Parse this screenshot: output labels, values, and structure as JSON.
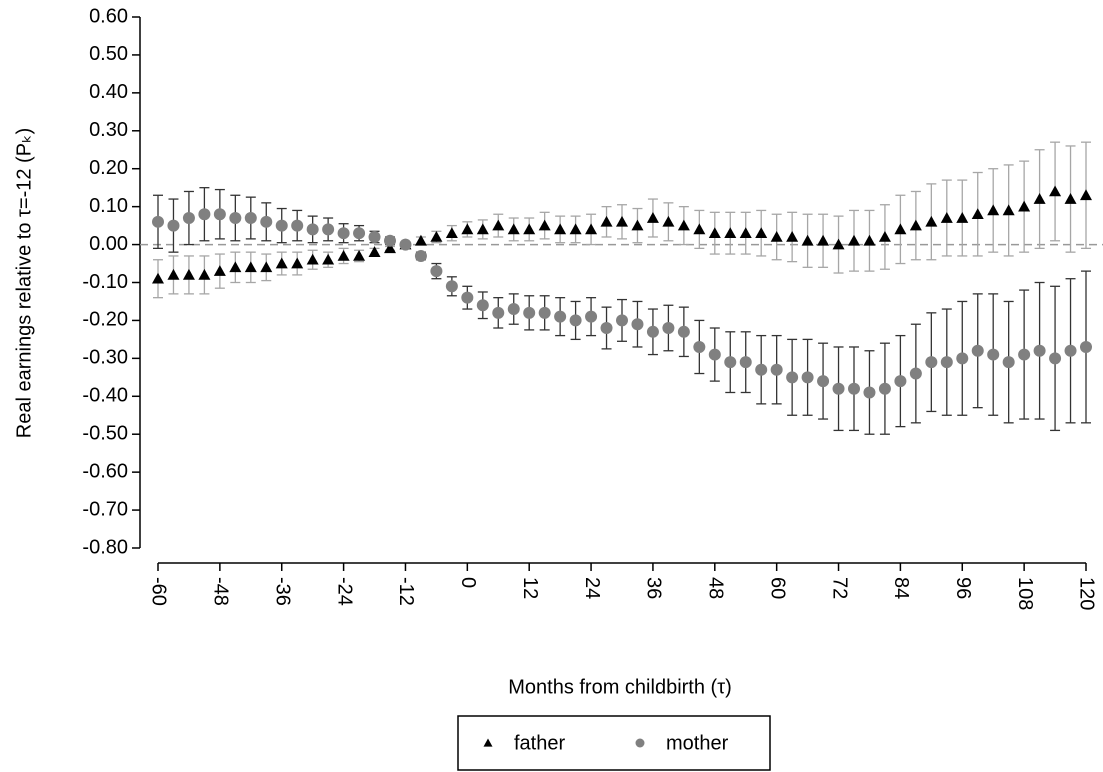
{
  "chart_data": {
    "type": "line",
    "y_label": "Real earnings relative to τ=-12 (Pₖ)",
    "x_label": "Months from childbirth (τ)",
    "x": [
      -60,
      -57,
      -54,
      -51,
      -48,
      -45,
      -42,
      -39,
      -36,
      -33,
      -30,
      -27,
      -24,
      -21,
      -18,
      -15,
      -12,
      -9,
      -6,
      -3,
      0,
      3,
      6,
      9,
      12,
      15,
      18,
      21,
      24,
      27,
      30,
      33,
      36,
      39,
      42,
      45,
      48,
      51,
      54,
      57,
      60,
      63,
      66,
      69,
      72,
      75,
      78,
      81,
      84,
      87,
      90,
      93,
      96,
      99,
      102,
      105,
      108,
      111,
      114,
      117,
      120
    ],
    "xlim": [
      -60,
      120
    ],
    "xticks": [
      -60,
      -48,
      -36,
      -24,
      -12,
      0,
      12,
      24,
      36,
      48,
      60,
      72,
      84,
      96,
      108,
      120
    ],
    "ylim": [
      -0.8,
      0.6
    ],
    "yticks": [
      {
        "value": 0.6,
        "label": "0.60"
      },
      {
        "value": 0.5,
        "label": "0.50"
      },
      {
        "value": 0.4,
        "label": "0.40"
      },
      {
        "value": 0.3,
        "label": "0.30"
      },
      {
        "value": 0.2,
        "label": "0.20"
      },
      {
        "value": 0.1,
        "label": "0.10"
      },
      {
        "value": 0,
        "label": "0.00"
      },
      {
        "value": -0.1,
        "label": "-0.10"
      },
      {
        "value": -0.2,
        "label": "-0.20"
      },
      {
        "value": -0.3,
        "label": "-0.30"
      },
      {
        "value": -0.4,
        "label": "-0.40"
      },
      {
        "value": -0.5,
        "label": "-0.50"
      },
      {
        "value": -0.6,
        "label": "-0.60"
      },
      {
        "value": -0.7,
        "label": "-0.70"
      },
      {
        "value": -0.8,
        "label": "-0.80"
      }
    ],
    "hline": 0,
    "legend": "bottom",
    "series": [
      {
        "name": "father",
        "color": "#000000",
        "marker": "triangle",
        "error_color": "#a6a6a6",
        "values": [
          -0.09,
          -0.08,
          -0.08,
          -0.08,
          -0.07,
          -0.06,
          -0.06,
          -0.06,
          -0.05,
          -0.05,
          -0.04,
          -0.04,
          -0.03,
          -0.03,
          -0.02,
          -0.01,
          0.0,
          0.01,
          0.02,
          0.03,
          0.04,
          0.04,
          0.05,
          0.04,
          0.04,
          0.05,
          0.04,
          0.04,
          0.04,
          0.06,
          0.06,
          0.05,
          0.07,
          0.06,
          0.05,
          0.04,
          0.03,
          0.03,
          0.03,
          0.03,
          0.02,
          0.02,
          0.01,
          0.01,
          0.0,
          0.01,
          0.01,
          0.02,
          0.04,
          0.05,
          0.06,
          0.07,
          0.07,
          0.08,
          0.09,
          0.09,
          0.1,
          0.12,
          0.14,
          0.12,
          0.13
        ],
        "errors": [
          0.05,
          0.05,
          0.05,
          0.05,
          0.045,
          0.04,
          0.04,
          0.035,
          0.03,
          0.03,
          0.025,
          0.02,
          0.02,
          0.015,
          0.01,
          0.005,
          0,
          0.01,
          0.015,
          0.02,
          0.02,
          0.025,
          0.03,
          0.03,
          0.03,
          0.035,
          0.035,
          0.035,
          0.04,
          0.04,
          0.045,
          0.045,
          0.05,
          0.05,
          0.05,
          0.05,
          0.055,
          0.055,
          0.055,
          0.06,
          0.06,
          0.065,
          0.07,
          0.07,
          0.075,
          0.08,
          0.08,
          0.085,
          0.09,
          0.09,
          0.1,
          0.1,
          0.1,
          0.11,
          0.11,
          0.12,
          0.12,
          0.13,
          0.13,
          0.14,
          0.14
        ]
      },
      {
        "name": "mother",
        "color": "#808080",
        "marker": "circle",
        "error_color": "#333333",
        "values": [
          0.06,
          0.05,
          0.07,
          0.08,
          0.08,
          0.07,
          0.07,
          0.06,
          0.05,
          0.05,
          0.04,
          0.04,
          0.03,
          0.03,
          0.02,
          0.01,
          0.0,
          -0.03,
          -0.07,
          -0.11,
          -0.14,
          -0.16,
          -0.18,
          -0.17,
          -0.18,
          -0.18,
          -0.19,
          -0.2,
          -0.19,
          -0.22,
          -0.2,
          -0.21,
          -0.23,
          -0.22,
          -0.23,
          -0.27,
          -0.29,
          -0.31,
          -0.31,
          -0.33,
          -0.33,
          -0.35,
          -0.35,
          -0.36,
          -0.38,
          -0.38,
          -0.39,
          -0.38,
          -0.36,
          -0.34,
          -0.31,
          -0.31,
          -0.3,
          -0.28,
          -0.29,
          -0.31,
          -0.29,
          -0.28,
          -0.3,
          -0.28,
          -0.27
        ],
        "errors": [
          0.07,
          0.07,
          0.07,
          0.07,
          0.065,
          0.06,
          0.055,
          0.05,
          0.045,
          0.04,
          0.035,
          0.03,
          0.025,
          0.02,
          0.015,
          0.01,
          0,
          0.01,
          0.02,
          0.025,
          0.03,
          0.035,
          0.04,
          0.04,
          0.045,
          0.045,
          0.05,
          0.05,
          0.05,
          0.055,
          0.055,
          0.06,
          0.06,
          0.06,
          0.065,
          0.07,
          0.07,
          0.08,
          0.08,
          0.09,
          0.09,
          0.1,
          0.1,
          0.1,
          0.11,
          0.11,
          0.11,
          0.12,
          0.12,
          0.13,
          0.13,
          0.14,
          0.15,
          0.15,
          0.16,
          0.16,
          0.17,
          0.18,
          0.19,
          0.19,
          0.2
        ]
      }
    ]
  }
}
